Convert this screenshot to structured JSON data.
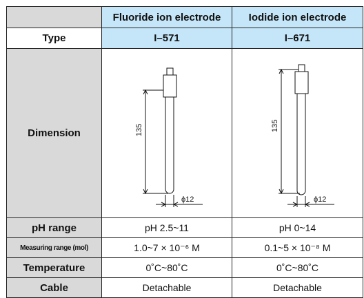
{
  "table": {
    "header": [
      "Fluoride ion electrode",
      "Iodide ion electrode"
    ],
    "type": {
      "label": "Type",
      "values": [
        "I–571",
        "I–671"
      ]
    },
    "dimension": {
      "label": "Dimension",
      "drawings": [
        {
          "length": "135",
          "diameter": "ϕ12"
        },
        {
          "length": "135",
          "diameter": "ϕ12"
        }
      ]
    },
    "rows": [
      {
        "label": "pH range",
        "values": [
          "pH 2.5~11",
          "pH 0~14"
        ]
      },
      {
        "label": "Measuring range (mol)",
        "values": [
          "1.0~7 × 10⁻⁶ M",
          "0.1~5 × 10⁻⁸ M"
        ]
      },
      {
        "label": "Temperature",
        "values": [
          "0˚C~80˚C",
          "0˚C~80˚C"
        ]
      },
      {
        "label": "Cable",
        "values": [
          "Detachable",
          "Detachable"
        ]
      }
    ]
  }
}
